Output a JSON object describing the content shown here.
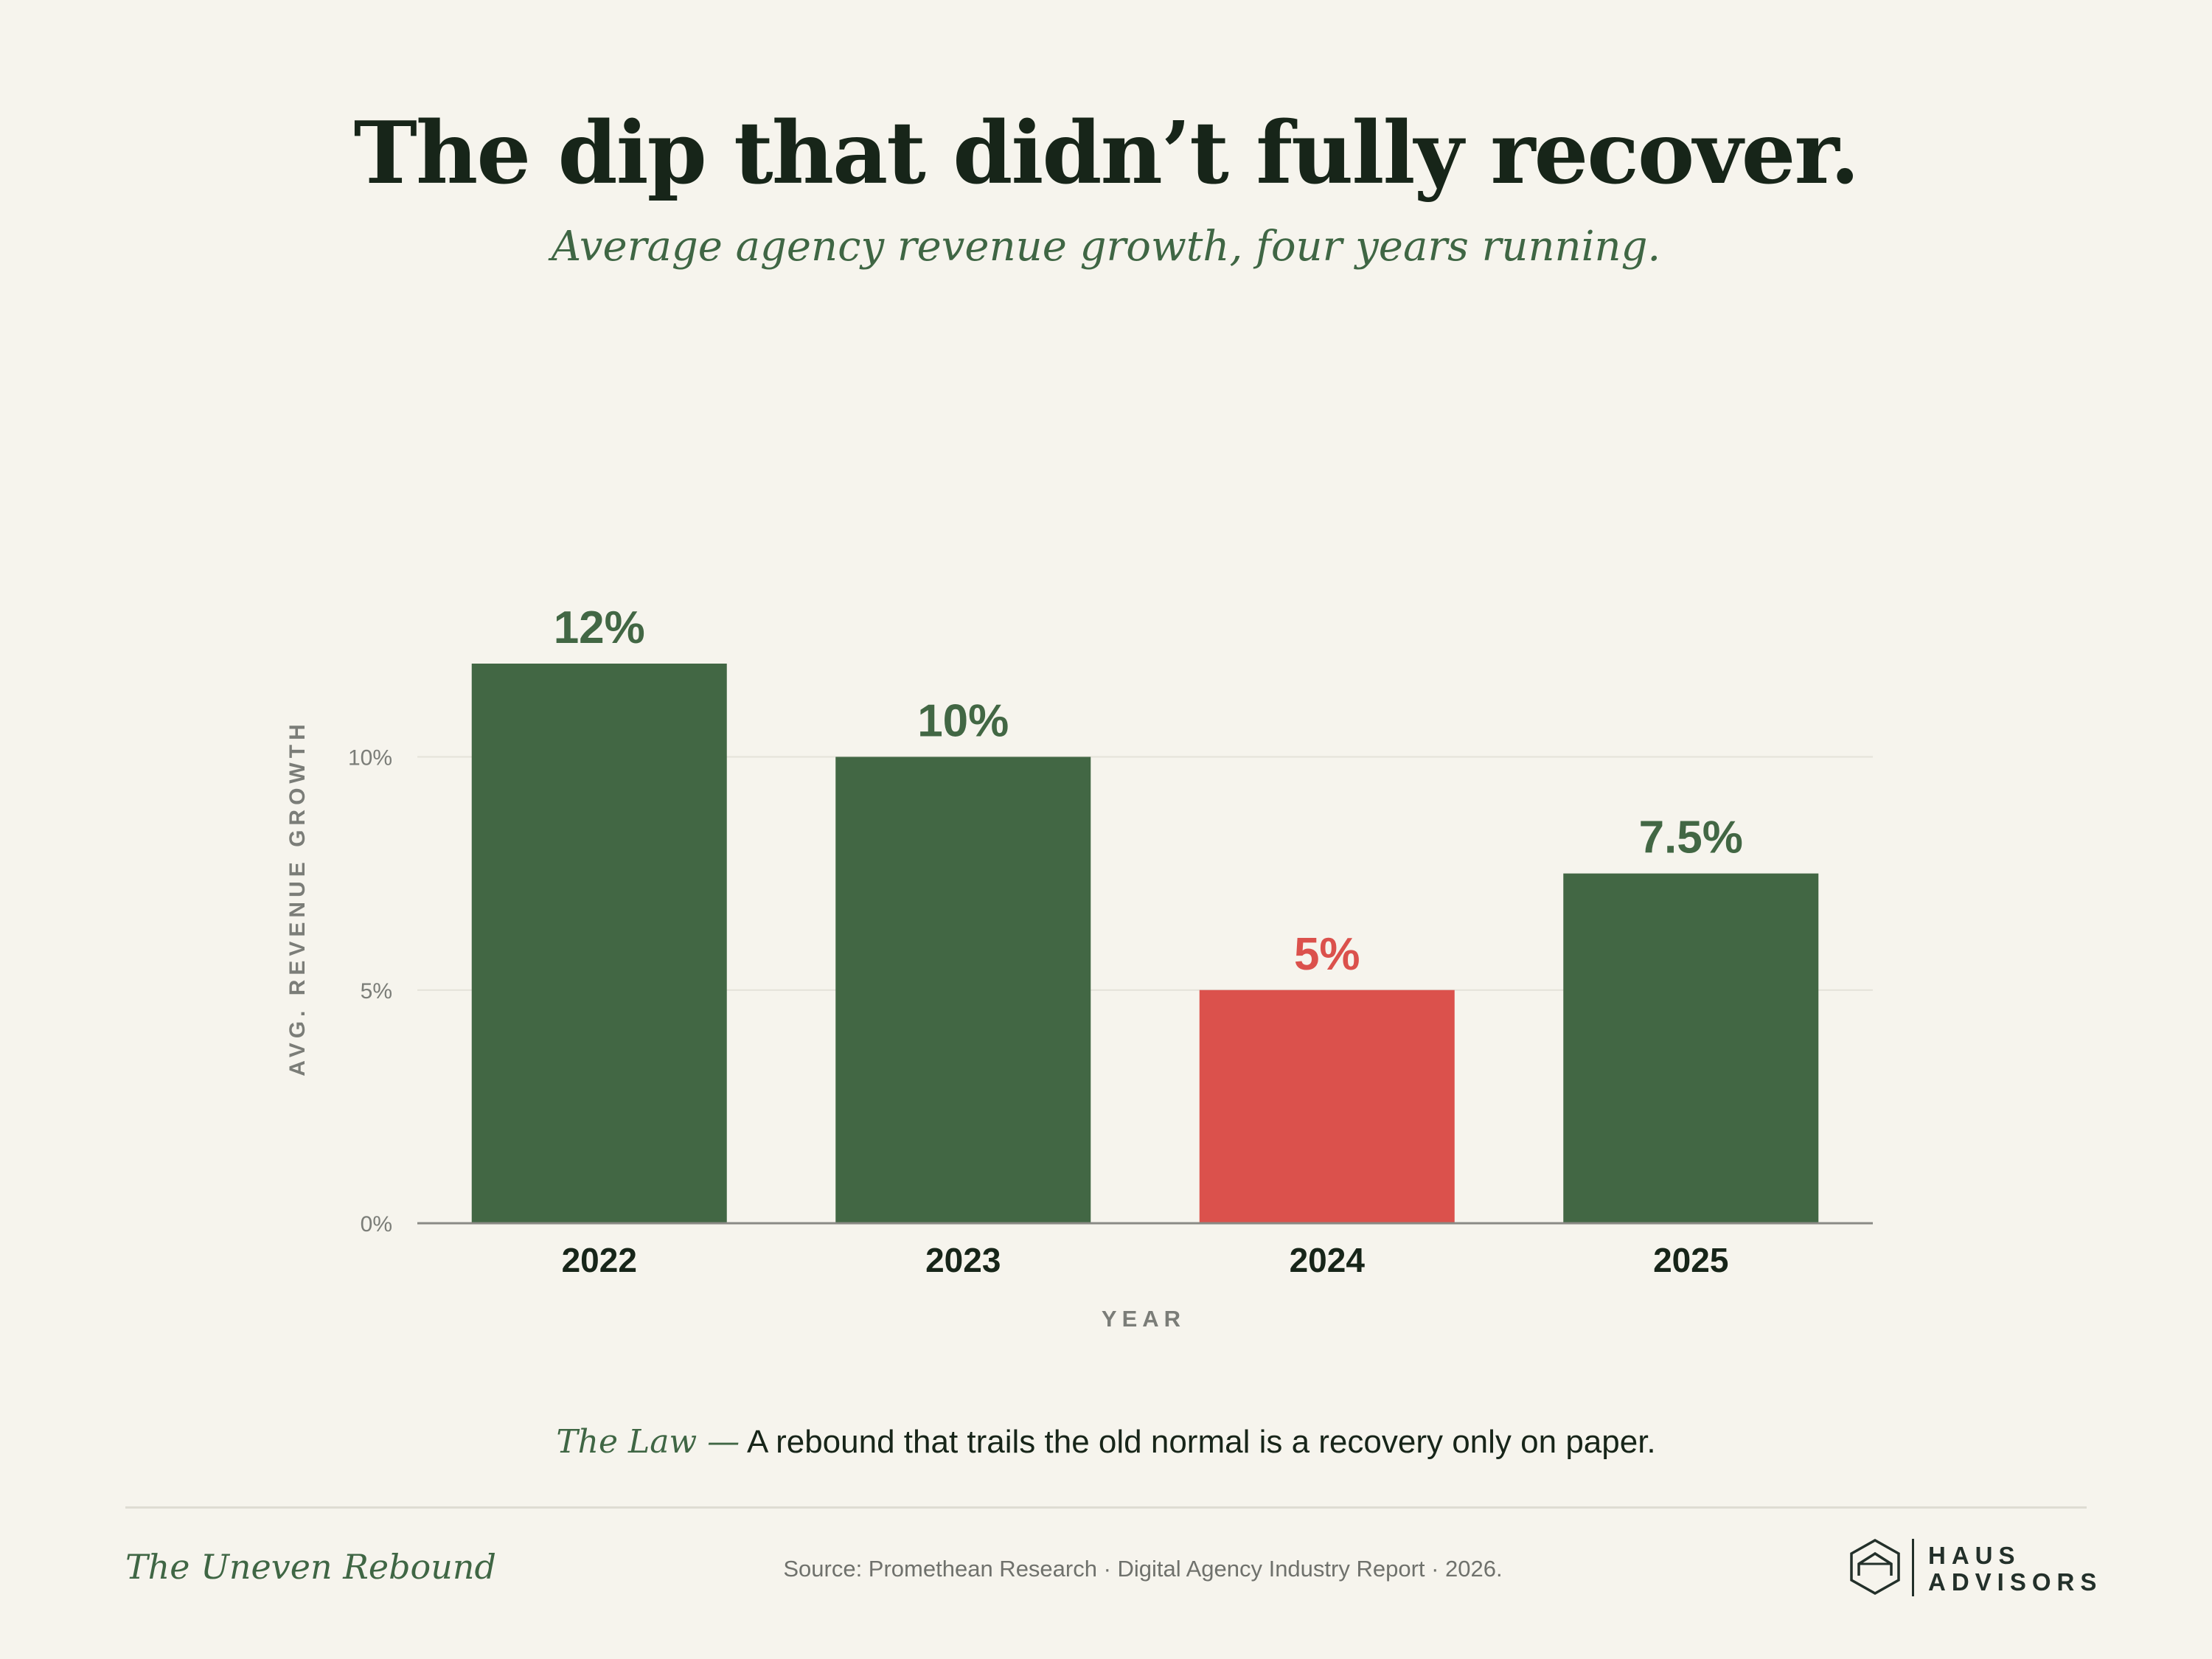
{
  "header": {
    "title": "The dip that didn’t fully recover.",
    "subtitle": "Average agency revenue growth, four years running."
  },
  "chart_data": {
    "type": "bar",
    "categories": [
      "2022",
      "2023",
      "2024",
      "2025"
    ],
    "values": [
      12,
      10,
      5,
      7.5
    ],
    "data_labels": [
      "12%",
      "10%",
      "5%",
      "7.5%"
    ],
    "highlight_index": 2,
    "xlabel": "YEAR",
    "ylabel": "AVG. REVENUE GROWTH",
    "ylim": [
      0,
      12
    ],
    "yticks": [
      0,
      5,
      10
    ],
    "ytick_labels": [
      "0%",
      "5%",
      "10%"
    ],
    "grid": true,
    "colors": {
      "bar": "#426744",
      "highlight": "#db514c",
      "grid": "#e4e2d9",
      "axis": "#8a8a85"
    }
  },
  "law": {
    "label": "The Law —",
    "text": "A rebound that trails the old normal is a recovery only on paper."
  },
  "footer": {
    "series_name": "The Uneven Rebound",
    "source": "Source: Promethean Research · Digital Agency Industry Report · 2026.",
    "brand_line1": "HAUS",
    "brand_line2": "ADVISORS",
    "brand_icon": "house-hexagon-icon"
  }
}
